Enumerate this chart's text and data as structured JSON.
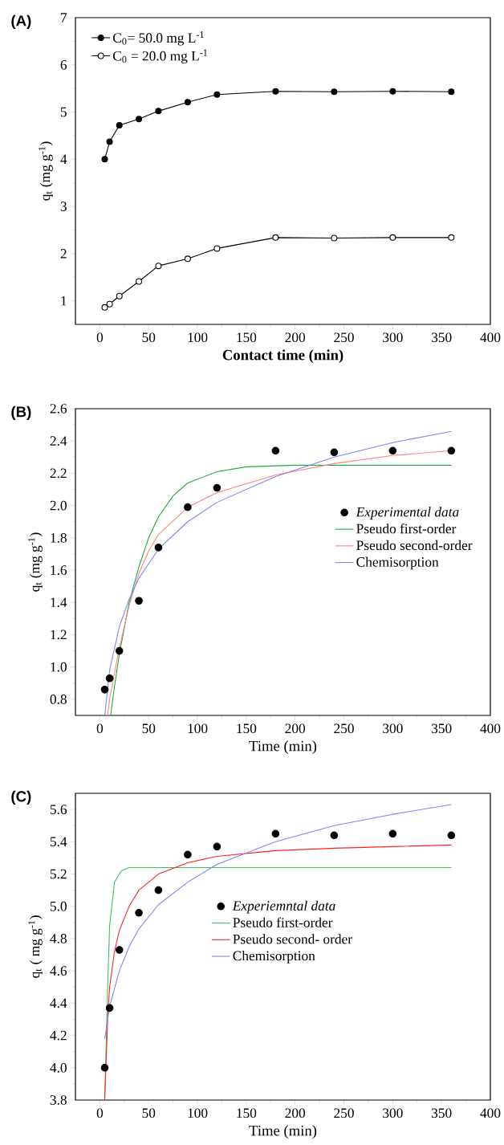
{
  "chart_data": [
    {
      "type": "line",
      "title": "(A)",
      "xlabel": "Contact time (min)",
      "ylabel": "q$_{t}$ (mg g$^{-1}$)",
      "xlim": [
        -25,
        400
      ],
      "ylim": [
        0.5,
        7
      ],
      "xticks": [
        0,
        50,
        100,
        150,
        200,
        250,
        300,
        350,
        400
      ],
      "yticks": [
        1,
        2,
        3,
        4,
        5,
        6,
        7
      ],
      "marker": "circle",
      "legend": "top left",
      "series": [
        {
          "name": "C$_{0}$= 50.0 mg L$^{-1}$",
          "color": "#000000",
          "x": [
            5,
            10,
            20,
            40,
            60,
            90,
            120,
            180,
            240,
            300,
            360
          ],
          "values": [
            4.0,
            4.37,
            4.72,
            4.85,
            5.02,
            5.21,
            5.37,
            5.44,
            5.43,
            5.44,
            5.43
          ]
        },
        {
          "name": "C$_{0}$ = 20.0 mg L$^{-1}$",
          "color": "#000000",
          "x": [
            5,
            10,
            20,
            40,
            60,
            90,
            120,
            180,
            240,
            300,
            360
          ],
          "values": [
            0.86,
            0.93,
            1.1,
            1.41,
            1.74,
            1.89,
            2.11,
            2.34,
            2.33,
            2.34,
            2.34
          ]
        }
      ]
    },
    {
      "type": "line",
      "title": "(B)",
      "xlabel": "Time (min)",
      "ylabel": "q$_{t}$ (mg g$^{-1}$)",
      "xlim": [
        -25,
        400
      ],
      "ylim": [
        0.7,
        2.6
      ],
      "xticks": [
        0,
        50,
        100,
        150,
        200,
        250,
        300,
        350,
        400
      ],
      "yticks": [
        0.8,
        {
          "value": 1.0,
          "label": "1.0"
        },
        1.2,
        1.4,
        1.6,
        1.8,
        {
          "value": 2.0,
          "label": "2.0"
        },
        2.2,
        2.4,
        2.6
      ],
      "legend": "right",
      "series": [
        {
          "name": "Experimental data",
          "type": "scatter",
          "marker": "circle",
          "color": "#000000",
          "x": [
            5,
            10,
            20,
            40,
            60,
            90,
            120,
            180,
            240,
            300,
            360
          ],
          "values": [
            0.86,
            0.93,
            1.1,
            1.41,
            1.74,
            1.99,
            2.11,
            2.34,
            2.33,
            2.34,
            2.34
          ]
        },
        {
          "name": "Pseudo first-order",
          "color": "#1fa83a",
          "x": [
            11,
            15,
            20,
            30,
            40,
            50,
            60,
            75,
            90,
            120,
            150,
            200,
            360
          ],
          "values": [
            0.7,
            0.88,
            1.08,
            1.4,
            1.62,
            1.8,
            1.93,
            2.06,
            2.14,
            2.21,
            2.24,
            2.25,
            2.25
          ]
        },
        {
          "name": "Pseudo second-order",
          "color": "#ff8080",
          "x": [
            8,
            10,
            20,
            30,
            40,
            50,
            60,
            90,
            120,
            180,
            240,
            300,
            360
          ],
          "values": [
            0.7,
            0.8,
            1.12,
            1.38,
            1.58,
            1.72,
            1.82,
            1.99,
            2.08,
            2.19,
            2.26,
            2.31,
            2.34
          ]
        },
        {
          "name": "Chemisorption",
          "color": "#8080ff",
          "x": [
            5,
            10,
            20,
            30,
            40,
            60,
            90,
            120,
            180,
            240,
            300,
            360
          ],
          "values": [
            0.7,
            0.98,
            1.25,
            1.42,
            1.55,
            1.73,
            1.9,
            2.02,
            2.18,
            2.3,
            2.39,
            2.46
          ]
        }
      ]
    },
    {
      "type": "line",
      "title": "(C)",
      "xlabel": "Time (min)",
      "ylabel": "q$_{t}$ ( mg g$^{-1}$)",
      "xlim": [
        -25,
        400
      ],
      "ylim": [
        3.8,
        5.7
      ],
      "xticks": [
        0,
        50,
        100,
        150,
        200,
        250,
        300,
        350,
        400
      ],
      "yticks": [
        3.8,
        {
          "value": 4.0,
          "label": "4.0"
        },
        4.2,
        4.4,
        4.6,
        4.8,
        {
          "value": 5.0,
          "label": "5.0"
        },
        5.2,
        5.4,
        5.6
      ],
      "legend": "center",
      "series": [
        {
          "name": "Experiemntal data",
          "type": "scatter",
          "marker": "circle",
          "color": "#000000",
          "x": [
            5,
            10,
            20,
            40,
            60,
            90,
            120,
            180,
            240,
            300,
            360
          ],
          "values": [
            4.0,
            4.37,
            4.73,
            4.96,
            5.1,
            5.32,
            5.37,
            5.45,
            5.44,
            5.45,
            5.44
          ]
        },
        {
          "name": "Pseudo first-order",
          "color": "#3cbf5a",
          "x": [
            5,
            8,
            10,
            15,
            22,
            30,
            360
          ],
          "values": [
            3.8,
            4.5,
            4.88,
            5.15,
            5.22,
            5.24,
            5.24
          ]
        },
        {
          "name": "Pseudo second- order",
          "color": "#ff2020",
          "x": [
            5,
            8,
            10,
            15,
            20,
            30,
            40,
            60,
            90,
            120,
            180,
            240,
            300,
            360
          ],
          "values": [
            3.8,
            4.3,
            4.5,
            4.72,
            4.85,
            5.0,
            5.1,
            5.2,
            5.27,
            5.31,
            5.345,
            5.36,
            5.37,
            5.38
          ]
        },
        {
          "name": "Chemisorption",
          "color": "#8080ff",
          "x": [
            5,
            10,
            20,
            30,
            40,
            60,
            90,
            120,
            150,
            180,
            240,
            300,
            360
          ],
          "values": [
            4.18,
            4.38,
            4.6,
            4.75,
            4.86,
            5.01,
            5.15,
            5.26,
            5.33,
            5.4,
            5.5,
            5.57,
            5.63
          ]
        }
      ]
    }
  ]
}
